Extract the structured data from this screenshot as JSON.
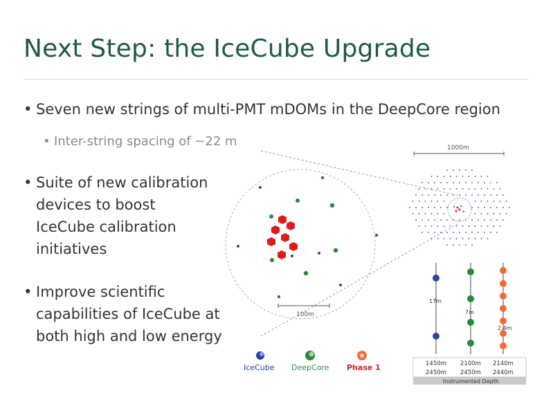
{
  "slide": {
    "title": "Next Step: the IceCube Upgrade",
    "bullets": [
      {
        "text": "Seven new strings of multi-PMT mDOMs in the DeepCore region",
        "sub": "Inter-string spacing of ~22 m"
      },
      {
        "lines": [
          "Suite of new calibration",
          "devices to boost",
          "IceCube calibration",
          "initiatives"
        ]
      },
      {
        "lines": [
          "Improve scientific",
          "capabilities of IceCube at",
          "both high and low energy"
        ]
      }
    ]
  },
  "figure": {
    "scale_zoom": "100m",
    "scale_full": "1000m",
    "spacing_icecube": "17m",
    "spacing_deepcore": "7m",
    "spacing_phase1": "2.4m",
    "depths": [
      {
        "top": "1450m",
        "bottom": "2450m"
      },
      {
        "top": "2100m",
        "bottom": "2450m"
      },
      {
        "top": "2140m",
        "bottom": "2440m"
      }
    ],
    "depth_label": "Instrumented Depth",
    "legend": [
      {
        "label": "IceCube",
        "color": "#1f3fa6"
      },
      {
        "label": "DeepCore",
        "color": "#2a8a3c"
      },
      {
        "label": "Phase 1",
        "color": "#d32020"
      }
    ]
  }
}
